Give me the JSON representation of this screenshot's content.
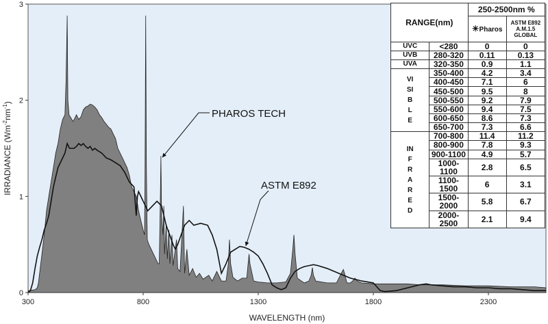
{
  "chart_data": {
    "type": "area",
    "xlabel": "WAVELENGTH (nm)",
    "ylabel_main": "IRRADIANCE (Wm",
    "ylabel_sup1": "-2",
    "ylabel_mid": "nm",
    "ylabel_sup2": "-1",
    "ylabel_end": ")",
    "xlim": [
      300,
      2550
    ],
    "ylim": [
      0,
      3
    ],
    "xticks": [
      300,
      800,
      1300,
      1800,
      2300
    ],
    "yticks": [
      0,
      1,
      2,
      3
    ],
    "grid": false,
    "series": [
      {
        "name": "PHAROS TECH",
        "style": "filled-gray",
        "points": [
          [
            300,
            0.02
          ],
          [
            330,
            0.03
          ],
          [
            340,
            0.05
          ],
          [
            345,
            0.1
          ],
          [
            350,
            0.2
          ],
          [
            360,
            0.4
          ],
          [
            370,
            0.6
          ],
          [
            380,
            0.85
          ],
          [
            390,
            1.0
          ],
          [
            400,
            1.15
          ],
          [
            410,
            1.3
          ],
          [
            420,
            1.45
          ],
          [
            430,
            1.55
          ],
          [
            440,
            1.7
          ],
          [
            450,
            1.8
          ],
          [
            460,
            1.85
          ],
          [
            465,
            2.2
          ],
          [
            470,
            2.88
          ],
          [
            473,
            2.0
          ],
          [
            478,
            1.85
          ],
          [
            485,
            1.82
          ],
          [
            495,
            1.78
          ],
          [
            500,
            1.8
          ],
          [
            510,
            1.85
          ],
          [
            520,
            1.8
          ],
          [
            530,
            1.83
          ],
          [
            540,
            1.9
          ],
          [
            550,
            1.93
          ],
          [
            560,
            1.94
          ],
          [
            570,
            1.96
          ],
          [
            580,
            1.95
          ],
          [
            590,
            1.93
          ],
          [
            600,
            1.9
          ],
          [
            610,
            1.85
          ],
          [
            620,
            1.82
          ],
          [
            630,
            1.78
          ],
          [
            640,
            1.75
          ],
          [
            650,
            1.72
          ],
          [
            660,
            1.7
          ],
          [
            670,
            1.65
          ],
          [
            680,
            1.6
          ],
          [
            690,
            1.5
          ],
          [
            700,
            1.45
          ],
          [
            710,
            1.4
          ],
          [
            720,
            1.35
          ],
          [
            730,
            1.3
          ],
          [
            740,
            1.22
          ],
          [
            750,
            1.1
          ],
          [
            760,
            1.05
          ],
          [
            770,
            1.0
          ],
          [
            780,
            0.85
          ],
          [
            790,
            0.75
          ],
          [
            800,
            0.65
          ],
          [
            806,
            0.6
          ],
          [
            808,
            1.2
          ],
          [
            811,
            2.88
          ],
          [
            814,
            1.3
          ],
          [
            818,
            0.55
          ],
          [
            825,
            0.5
          ],
          [
            835,
            0.45
          ],
          [
            845,
            0.4
          ],
          [
            855,
            0.35
          ],
          [
            865,
            0.3
          ],
          [
            870,
            0.3
          ],
          [
            874,
            0.9
          ],
          [
            877,
            1.42
          ],
          [
            880,
            0.8
          ],
          [
            886,
            0.6
          ],
          [
            890,
            0.9
          ],
          [
            893,
            0.4
          ],
          [
            900,
            0.7
          ],
          [
            905,
            0.35
          ],
          [
            912,
            0.65
          ],
          [
            916,
            0.3
          ],
          [
            925,
            0.6
          ],
          [
            930,
            0.28
          ],
          [
            945,
            0.55
          ],
          [
            950,
            0.25
          ],
          [
            960,
            0.22
          ],
          [
            975,
            0.9
          ],
          [
            980,
            0.2
          ],
          [
            990,
            0.45
          ],
          [
            1000,
            0.18
          ],
          [
            1015,
            0.25
          ],
          [
            1030,
            0.16
          ],
          [
            1045,
            0.2
          ],
          [
            1060,
            0.14
          ],
          [
            1085,
            0.18
          ],
          [
            1100,
            0.12
          ],
          [
            1120,
            0.22
          ],
          [
            1140,
            0.12
          ],
          [
            1160,
            0.12
          ],
          [
            1170,
            0.3
          ],
          [
            1175,
            0.55
          ],
          [
            1180,
            0.3
          ],
          [
            1190,
            0.16
          ],
          [
            1210,
            0.12
          ],
          [
            1230,
            0.15
          ],
          [
            1250,
            0.15
          ],
          [
            1256,
            0.3
          ],
          [
            1260,
            0.4
          ],
          [
            1264,
            0.3
          ],
          [
            1280,
            0.12
          ],
          [
            1300,
            0.11
          ],
          [
            1340,
            0.1
          ],
          [
            1380,
            0.1
          ],
          [
            1420,
            0.11
          ],
          [
            1440,
            0.2
          ],
          [
            1450,
            0.45
          ],
          [
            1455,
            0.6
          ],
          [
            1460,
            0.4
          ],
          [
            1470,
            0.15
          ],
          [
            1500,
            0.1
          ],
          [
            1520,
            0.12
          ],
          [
            1530,
            0.18
          ],
          [
            1535,
            0.26
          ],
          [
            1540,
            0.18
          ],
          [
            1550,
            0.12
          ],
          [
            1600,
            0.1
          ],
          [
            1640,
            0.1
          ],
          [
            1665,
            0.22
          ],
          [
            1670,
            0.24
          ],
          [
            1675,
            0.2
          ],
          [
            1685,
            0.1
          ],
          [
            1700,
            0.1
          ],
          [
            1710,
            0.12
          ],
          [
            1720,
            0.15
          ],
          [
            1730,
            0.12
          ],
          [
            1750,
            0.1
          ],
          [
            1800,
            0.09
          ],
          [
            1850,
            0.09
          ],
          [
            1900,
            0.09
          ],
          [
            1950,
            0.09
          ],
          [
            2000,
            0.08
          ],
          [
            2050,
            0.08
          ],
          [
            2100,
            0.08
          ],
          [
            2200,
            0.07
          ],
          [
            2300,
            0.07
          ],
          [
            2400,
            0.06
          ],
          [
            2500,
            0.06
          ],
          [
            2550,
            0.05
          ]
        ]
      },
      {
        "name": "ASTM E892",
        "style": "black-line",
        "points": [
          [
            300,
            0.0
          ],
          [
            310,
            0.02
          ],
          [
            320,
            0.1
          ],
          [
            330,
            0.25
          ],
          [
            340,
            0.38
          ],
          [
            350,
            0.47
          ],
          [
            360,
            0.55
          ],
          [
            370,
            0.65
          ],
          [
            380,
            0.72
          ],
          [
            390,
            0.8
          ],
          [
            400,
            0.95
          ],
          [
            410,
            1.1
          ],
          [
            420,
            1.2
          ],
          [
            430,
            1.3
          ],
          [
            440,
            1.35
          ],
          [
            450,
            1.4
          ],
          [
            460,
            1.45
          ],
          [
            470,
            1.55
          ],
          [
            480,
            1.5
          ],
          [
            490,
            1.5
          ],
          [
            500,
            1.5
          ],
          [
            510,
            1.52
          ],
          [
            520,
            1.55
          ],
          [
            530,
            1.53
          ],
          [
            540,
            1.55
          ],
          [
            550,
            1.52
          ],
          [
            560,
            1.5
          ],
          [
            570,
            1.52
          ],
          [
            580,
            1.48
          ],
          [
            590,
            1.5
          ],
          [
            600,
            1.48
          ],
          [
            620,
            1.45
          ],
          [
            640,
            1.4
          ],
          [
            660,
            1.38
          ],
          [
            680,
            1.35
          ],
          [
            700,
            1.32
          ],
          [
            720,
            1.25
          ],
          [
            740,
            1.15
          ],
          [
            760,
            1.1
          ],
          [
            770,
            0.8
          ],
          [
            775,
            1.0
          ],
          [
            780,
            1.05
          ],
          [
            800,
            0.95
          ],
          [
            820,
            0.85
          ],
          [
            840,
            0.9
          ],
          [
            860,
            0.95
          ],
          [
            880,
            0.9
          ],
          [
            900,
            0.7
          ],
          [
            930,
            0.5
          ],
          [
            940,
            0.45
          ],
          [
            950,
            0.5
          ],
          [
            980,
            0.7
          ],
          [
            1000,
            0.75
          ],
          [
            1020,
            0.7
          ],
          [
            1050,
            0.72
          ],
          [
            1080,
            0.7
          ],
          [
            1100,
            0.6
          ],
          [
            1120,
            0.45
          ],
          [
            1140,
            0.2
          ],
          [
            1160,
            0.3
          ],
          [
            1180,
            0.42
          ],
          [
            1200,
            0.45
          ],
          [
            1220,
            0.48
          ],
          [
            1240,
            0.47
          ],
          [
            1260,
            0.45
          ],
          [
            1280,
            0.42
          ],
          [
            1300,
            0.38
          ],
          [
            1320,
            0.3
          ],
          [
            1340,
            0.2
          ],
          [
            1360,
            0.08
          ],
          [
            1380,
            0.05
          ],
          [
            1400,
            0.03
          ],
          [
            1420,
            0.05
          ],
          [
            1440,
            0.15
          ],
          [
            1460,
            0.22
          ],
          [
            1480,
            0.25
          ],
          [
            1500,
            0.27
          ],
          [
            1520,
            0.28
          ],
          [
            1540,
            0.29
          ],
          [
            1560,
            0.28
          ],
          [
            1600,
            0.25
          ],
          [
            1650,
            0.2
          ],
          [
            1700,
            0.15
          ],
          [
            1750,
            0.12
          ],
          [
            1800,
            0.1
          ],
          [
            1830,
            0.02
          ],
          [
            1850,
            0.01
          ],
          [
            1900,
            0.02
          ],
          [
            1950,
            0.05
          ],
          [
            2000,
            0.08
          ],
          [
            2030,
            0.09
          ],
          [
            2050,
            0.08
          ],
          [
            2100,
            0.07
          ],
          [
            2150,
            0.06
          ],
          [
            2200,
            0.06
          ],
          [
            2250,
            0.05
          ],
          [
            2300,
            0.05
          ],
          [
            2350,
            0.04
          ],
          [
            2400,
            0.04
          ],
          [
            2450,
            0.03
          ],
          [
            2500,
            0.02
          ],
          [
            2550,
            0.02
          ]
        ]
      }
    ],
    "annotations": [
      {
        "text": "PHAROS TECH",
        "points_to": [
          877,
          1.42
        ]
      },
      {
        "text": "ASTM E892",
        "points_to": [
          1240,
          0.47
        ]
      }
    ]
  },
  "table": {
    "header_top": "250-2500nm %",
    "range_header": "RANGE(nm)",
    "sun_glyph": "☀",
    "col1": "Pharos",
    "col2_line1": "ASTM E892",
    "col2_line2": "A.M.1.5",
    "col2_line3": "GLOBAL",
    "single_rows": [
      {
        "band": "UVC",
        "range": "<280",
        "pharos": "0",
        "astm": "0"
      },
      {
        "band": "UVB",
        "range": "280-320",
        "pharos": "0.11",
        "astm": "0.13"
      },
      {
        "band": "UVA",
        "range": "320-350",
        "pharos": "0.9",
        "astm": "1.1"
      }
    ],
    "visible_label": "VISIBLE",
    "visible_rows": [
      {
        "range": "350-400",
        "pharos": "4.2",
        "astm": "3.4"
      },
      {
        "range": "400-450",
        "pharos": "7.1",
        "astm": "6"
      },
      {
        "range": "450-500",
        "pharos": "9.5",
        "astm": "8"
      },
      {
        "range": "500-550",
        "pharos": "9.2",
        "astm": "7.9"
      },
      {
        "range": "550-600",
        "pharos": "9.4",
        "astm": "7.5"
      },
      {
        "range": "600-650",
        "pharos": "8.6",
        "astm": "7.3"
      },
      {
        "range": "650-700",
        "pharos": "7.3",
        "astm": "6.6"
      }
    ],
    "infrared_label": "INFRARED",
    "infrared_rows": [
      {
        "range": "700-800",
        "pharos": "11.4",
        "astm": "11.2"
      },
      {
        "range": "800-900",
        "pharos": "7.8",
        "astm": "9.3"
      },
      {
        "range": "900-1100",
        "pharos": "4.9",
        "astm": "5.7"
      },
      {
        "range": "1000-1100",
        "pharos": "2.8",
        "astm": "6.5"
      },
      {
        "range": "1100-1500",
        "pharos": "6",
        "astm": "3.1"
      },
      {
        "range": "1500-2000",
        "pharos": "5.8",
        "astm": "6.7"
      },
      {
        "range": "2000-2500",
        "pharos": "2.1",
        "astm": "9.4"
      }
    ]
  },
  "colors": {
    "plot_background": "#e4eef8",
    "pharos_fill": "#808080",
    "astm_line": "#111111"
  }
}
